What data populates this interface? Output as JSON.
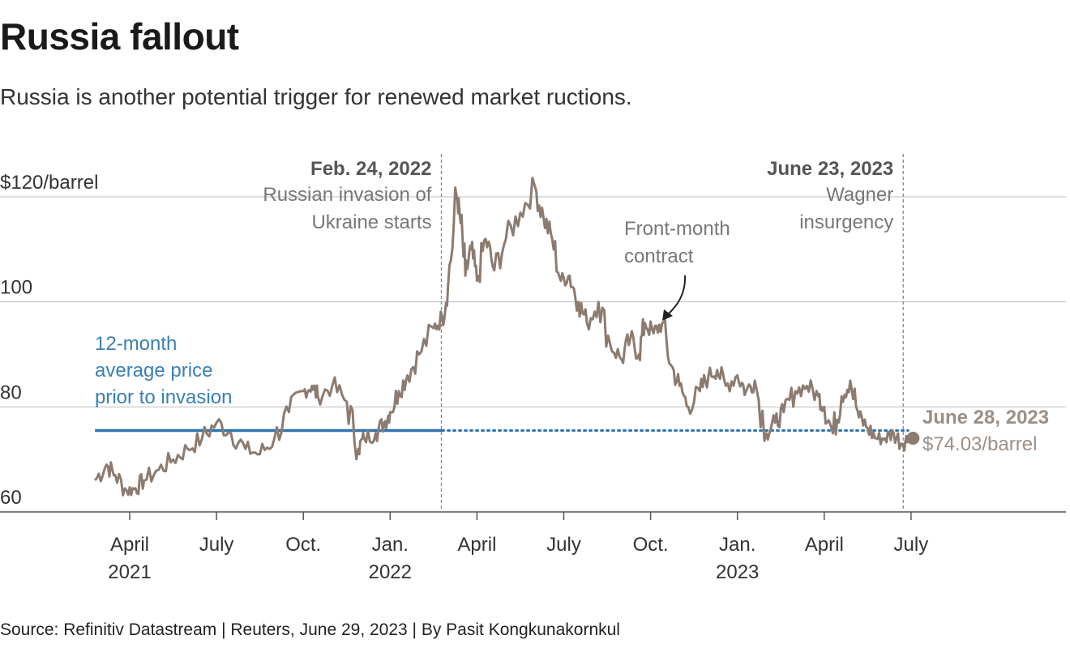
{
  "header": {
    "title": "Russia fallout",
    "subtitle": "Russia is another potential trigger for renewed market ructions."
  },
  "footer": {
    "source": "Source: Refinitiv Datastream | Reuters, June 29, 2023 | By Pasit Kongkunakornkul"
  },
  "colors": {
    "price_line": "#8c7b70",
    "average_line": "#2e75b0",
    "grid": "#bdbdbd",
    "event_line": "#888888"
  },
  "chart_data": {
    "type": "line",
    "title": "Russia fallout",
    "ylabel": "$/barrel",
    "ylim": [
      60,
      120
    ],
    "y_ticks": [
      {
        "value": 120,
        "label": "$120/barrel"
      },
      {
        "value": 100,
        "label": "100"
      },
      {
        "value": 80,
        "label": "80"
      },
      {
        "value": 60,
        "label": "60"
      }
    ],
    "x_ticks": [
      {
        "month": 3,
        "line1": "April",
        "line2": "2021"
      },
      {
        "month": 6,
        "line1": "July",
        "line2": ""
      },
      {
        "month": 9,
        "line1": "Oct.",
        "line2": ""
      },
      {
        "month": 12,
        "line1": "Jan.",
        "line2": "2022"
      },
      {
        "month": 15,
        "line1": "April",
        "line2": ""
      },
      {
        "month": 18,
        "line1": "July",
        "line2": ""
      },
      {
        "month": 21,
        "line1": "Oct.",
        "line2": ""
      },
      {
        "month": 24,
        "line1": "Jan.",
        "line2": "2023"
      },
      {
        "month": 27,
        "line1": "April",
        "line2": ""
      },
      {
        "month": 30,
        "line1": "July",
        "line2": ""
      }
    ],
    "x_range_months": [
      1.8,
      31.0
    ],
    "series": [
      {
        "name": "Front-month contract",
        "x_month": [
          1.8,
          2.2,
          2.5,
          2.9,
          3.2,
          3.5,
          4.0,
          4.5,
          5.0,
          5.5,
          6.0,
          6.5,
          7.0,
          7.5,
          8.0,
          8.5,
          9.0,
          9.3,
          9.5,
          10.0,
          10.5,
          10.9,
          11.1,
          11.5,
          11.8,
          12.0,
          12.3,
          12.6,
          13.0,
          13.5,
          13.8,
          14.0,
          14.3,
          14.4,
          14.6,
          14.8,
          15.0,
          15.3,
          15.6,
          16.0,
          16.5,
          17.0,
          17.3,
          17.6,
          17.9,
          18.2,
          18.5,
          18.8,
          19.2,
          19.6,
          20.0,
          20.3,
          20.6,
          20.8,
          21.1,
          21.4,
          21.7,
          22.0,
          22.3,
          22.7,
          23.0,
          23.3,
          23.6,
          24.0,
          24.3,
          24.6,
          25.0,
          25.3,
          25.6,
          26.0,
          26.4,
          26.8,
          27.0,
          27.3,
          27.6,
          27.9,
          28.2,
          28.5,
          28.8,
          29.1,
          29.4,
          29.7,
          29.9
        ],
        "values": [
          66,
          69,
          67,
          64,
          64.5,
          66,
          68,
          70,
          72,
          74,
          77,
          75,
          72,
          71,
          74,
          79,
          83,
          84,
          82,
          84,
          81,
          72,
          74,
          75,
          77,
          79,
          83,
          86,
          90,
          95,
          97,
          103,
          120,
          117,
          105,
          110,
          104,
          112,
          106,
          112,
          117,
          122,
          116,
          112,
          104,
          105,
          100,
          96,
          100,
          92,
          89,
          93,
          90,
          96,
          94,
          96,
          88,
          84,
          80,
          83,
          86,
          87,
          84,
          86,
          83,
          85,
          75,
          77,
          79,
          83,
          84,
          82,
          80,
          75,
          82,
          85,
          78,
          76,
          74,
          74,
          75,
          73,
          74.03
        ]
      }
    ],
    "average": {
      "label_lines": [
        "12-month",
        "average price",
        "prior to invasion"
      ],
      "value": 75.5,
      "solid_until_month": 13.8
    },
    "events": [
      {
        "month": 13.77,
        "date": "Feb. 24, 2022",
        "label_lines": [
          "Russian invasion of",
          "Ukraine starts"
        ]
      },
      {
        "month": 29.73,
        "date": "June 23, 2023",
        "label_lines": [
          "Wagner",
          "insurgency"
        ]
      }
    ],
    "series_label_lines": [
      "Front-month",
      "contract"
    ],
    "end_point": {
      "month": 29.9,
      "value": 74.03,
      "date": "June 28, 2023",
      "value_label": "$74.03/barrel"
    }
  }
}
